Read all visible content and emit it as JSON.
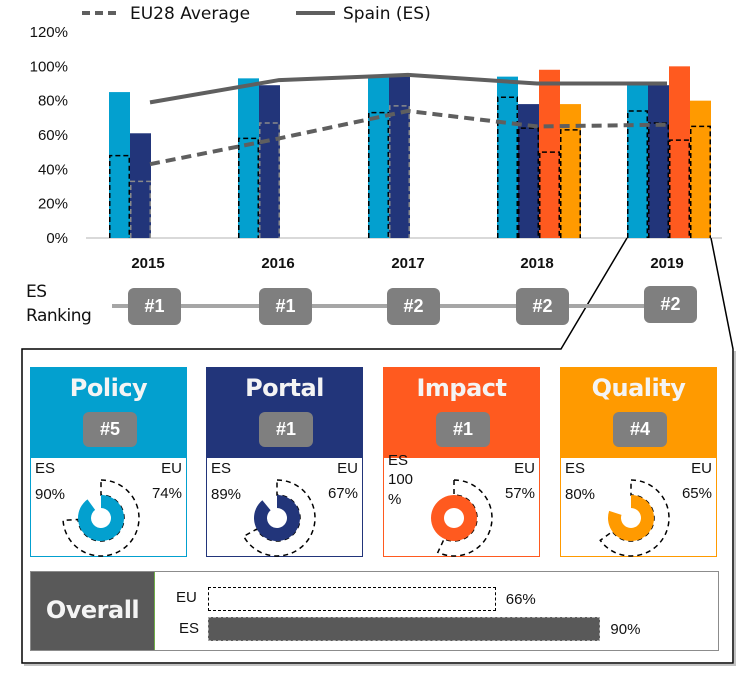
{
  "colors": {
    "policy": "#03A0CF",
    "portal": "#22357A",
    "impact": "#FF5A1F",
    "quality": "#FF9A00",
    "line": "#5f5f5f",
    "badge": "#7F7F7F",
    "overall_dark": "#595959"
  },
  "chart_data": {
    "type": "bar",
    "title": "",
    "xlabel": "",
    "ylabel": "",
    "ylim": [
      0,
      120
    ],
    "yticks": [
      "0%",
      "20%",
      "40%",
      "60%",
      "80%",
      "100%",
      "120%"
    ],
    "ytick_values": [
      0,
      20,
      40,
      60,
      80,
      100,
      120
    ],
    "categories": [
      "2015",
      "2016",
      "2017",
      "2018",
      "2019"
    ],
    "legend": {
      "position": "top",
      "entries": [
        "EU28 Average",
        "Spain (ES)"
      ]
    },
    "bar_series": [
      {
        "name": "Policy",
        "color_key": "policy",
        "es": [
          85,
          93,
          95,
          94,
          90
        ],
        "eu": [
          48,
          58,
          73,
          82,
          74
        ]
      },
      {
        "name": "Portal",
        "color_key": "portal",
        "es": [
          61,
          89,
          95,
          78,
          89
        ],
        "eu": [
          33,
          67,
          77,
          64,
          67
        ]
      },
      {
        "name": "Impact",
        "color_key": "impact",
        "es": [
          null,
          null,
          null,
          98,
          100
        ],
        "eu": [
          null,
          null,
          null,
          50,
          57
        ]
      },
      {
        "name": "Quality",
        "color_key": "quality",
        "es": [
          null,
          null,
          null,
          78,
          80
        ],
        "eu": [
          null,
          null,
          null,
          63,
          65
        ]
      }
    ],
    "line_series": [
      {
        "name": "EU28 Average",
        "style": "dashed",
        "values": [
          43,
          58,
          74,
          65,
          66
        ]
      },
      {
        "name": "Spain (ES)",
        "style": "solid",
        "values": [
          79,
          92,
          95,
          90,
          90
        ]
      }
    ]
  },
  "ranking": {
    "label_line1": "ES",
    "label_line2": "Ranking",
    "values": [
      "#1",
      "#1",
      "#2",
      "#2",
      "#2"
    ]
  },
  "cards": [
    {
      "title": "Policy",
      "rank": "#5",
      "es_label": "ES",
      "es_value": "90%",
      "eu_label": "EU",
      "eu_value": "74%",
      "es": 90,
      "eu": 74,
      "color_key": "policy"
    },
    {
      "title": "Portal",
      "rank": "#1",
      "es_label": "ES",
      "es_value": "89%",
      "eu_label": "EU",
      "eu_value": "67%",
      "es": 89,
      "eu": 67,
      "color_key": "portal"
    },
    {
      "title": "Impact",
      "rank": "#1",
      "es_label": "ES",
      "es_value": "100 %",
      "eu_label": "EU",
      "eu_value": "57%",
      "es": 100,
      "eu": 57,
      "color_key": "impact"
    },
    {
      "title": "Quality",
      "rank": "#4",
      "es_label": "ES",
      "es_value": "80%",
      "eu_label": "EU",
      "eu_value": "65%",
      "es": 80,
      "eu": 65,
      "color_key": "quality"
    }
  ],
  "overall": {
    "title": "Overall",
    "eu_label": "EU",
    "eu_value": "66%",
    "eu": 66,
    "es_label": "ES",
    "es_value": "90%",
    "es": 90
  }
}
